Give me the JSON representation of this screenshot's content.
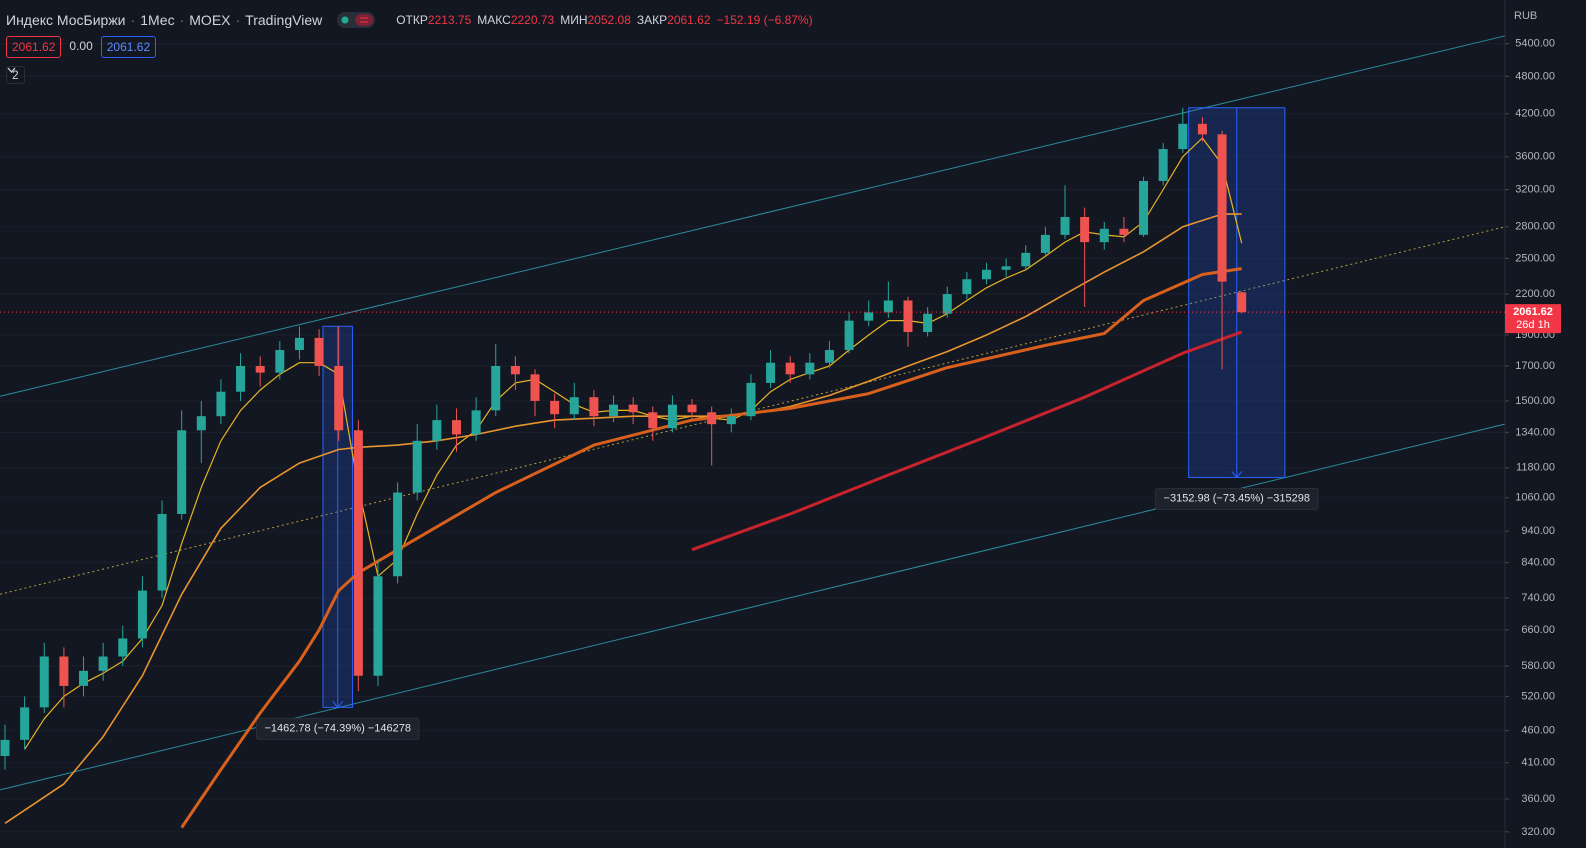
{
  "header": {
    "symbol": "Индекс МосБиржи",
    "interval": "1Мес",
    "exchange": "MOEX",
    "source": "TradingView",
    "ohlc": [
      {
        "label": "ОТКР",
        "value": 2213.75
      },
      {
        "label": "МАКС",
        "value": 2220.73
      },
      {
        "label": "МИН",
        "value": 2052.08
      },
      {
        "label": "ЗАКР",
        "value": 2061.62
      }
    ],
    "change": "−152.19 (−6.87%)",
    "inputs": [
      "2061.62",
      "0.00",
      "2061.62"
    ],
    "indicators_count": 2
  },
  "chart_data": {
    "type": "candlestick",
    "log_scale": true,
    "grid": true,
    "currency": "RUB",
    "up_color": "#26a69a",
    "down_color": "#ef5350",
    "candles": [
      [
        420,
        470,
        400,
        445
      ],
      [
        445,
        520,
        430,
        500
      ],
      [
        500,
        630,
        490,
        600
      ],
      [
        600,
        620,
        500,
        540
      ],
      [
        540,
        600,
        520,
        570
      ],
      [
        570,
        630,
        550,
        600
      ],
      [
        600,
        670,
        580,
        640
      ],
      [
        640,
        800,
        620,
        760
      ],
      [
        760,
        1050,
        740,
        1000
      ],
      [
        1000,
        1450,
        980,
        1350
      ],
      [
        1350,
        1500,
        1200,
        1420
      ],
      [
        1420,
        1620,
        1380,
        1550
      ],
      [
        1550,
        1780,
        1500,
        1700
      ],
      [
        1700,
        1760,
        1580,
        1660
      ],
      [
        1660,
        1860,
        1620,
        1800
      ],
      [
        1800,
        1960,
        1740,
        1880
      ],
      [
        1880,
        1940,
        1640,
        1700
      ],
      [
        1700,
        1960,
        1300,
        1350
      ],
      [
        1350,
        1400,
        530,
        560
      ],
      [
        560,
        850,
        540,
        800
      ],
      [
        800,
        1120,
        780,
        1080
      ],
      [
        1080,
        1380,
        1050,
        1300
      ],
      [
        1300,
        1480,
        1260,
        1400
      ],
      [
        1400,
        1460,
        1250,
        1330
      ],
      [
        1330,
        1520,
        1300,
        1450
      ],
      [
        1450,
        1840,
        1420,
        1700
      ],
      [
        1700,
        1760,
        1560,
        1650
      ],
      [
        1650,
        1680,
        1420,
        1500
      ],
      [
        1500,
        1540,
        1360,
        1430
      ],
      [
        1430,
        1600,
        1400,
        1520
      ],
      [
        1520,
        1560,
        1370,
        1420
      ],
      [
        1420,
        1530,
        1390,
        1480
      ],
      [
        1480,
        1520,
        1380,
        1440
      ],
      [
        1440,
        1470,
        1300,
        1360
      ],
      [
        1360,
        1530,
        1340,
        1480
      ],
      [
        1480,
        1510,
        1400,
        1440
      ],
      [
        1440,
        1470,
        1190,
        1380
      ],
      [
        1380,
        1460,
        1340,
        1420
      ],
      [
        1420,
        1650,
        1400,
        1600
      ],
      [
        1600,
        1800,
        1570,
        1720
      ],
      [
        1720,
        1760,
        1600,
        1650
      ],
      [
        1650,
        1780,
        1620,
        1720
      ],
      [
        1720,
        1860,
        1690,
        1800
      ],
      [
        1800,
        2060,
        1780,
        2000
      ],
      [
        2000,
        2150,
        1960,
        2060
      ],
      [
        2060,
        2300,
        2020,
        2150
      ],
      [
        2150,
        2180,
        1820,
        1920
      ],
      [
        1920,
        2100,
        1890,
        2050
      ],
      [
        2050,
        2260,
        2020,
        2200
      ],
      [
        2200,
        2380,
        2160,
        2320
      ],
      [
        2320,
        2460,
        2280,
        2400
      ],
      [
        2400,
        2500,
        2340,
        2430
      ],
      [
        2430,
        2620,
        2400,
        2550
      ],
      [
        2550,
        2800,
        2520,
        2720
      ],
      [
        2720,
        3250,
        2680,
        2900
      ],
      [
        2900,
        3000,
        2100,
        2650
      ],
      [
        2650,
        2850,
        2580,
        2780
      ],
      [
        2780,
        2900,
        2650,
        2720
      ],
      [
        2720,
        3350,
        2700,
        3300
      ],
      [
        3300,
        3780,
        3250,
        3700
      ],
      [
        3700,
        4290,
        3650,
        4050
      ],
      [
        4050,
        4150,
        3800,
        3900
      ],
      [
        3900,
        3950,
        1680,
        2300
      ],
      [
        2213.75,
        2220.73,
        2052.08,
        2061.62
      ]
    ],
    "series": [
      {
        "color": "#e6b422",
        "width": 1.2,
        "x": [
          1,
          2,
          3,
          4,
          5,
          6,
          7,
          8,
          9,
          10,
          11,
          12,
          13,
          14,
          15,
          16,
          17,
          18,
          19,
          20,
          21,
          22,
          23,
          24,
          25,
          26,
          27,
          28,
          29,
          30,
          31,
          32,
          33,
          34,
          35,
          36,
          37,
          38,
          39,
          40,
          41,
          42,
          43,
          44,
          45,
          46,
          47,
          48,
          49,
          50,
          51,
          52,
          53,
          54,
          55,
          56,
          57,
          58,
          59,
          60,
          61,
          62,
          63
        ],
        "values": [
          430,
          480,
          520,
          545,
          565,
          590,
          640,
          720,
          900,
          1100,
          1300,
          1450,
          1560,
          1650,
          1720,
          1720,
          1650,
          1100,
          800,
          850,
          1000,
          1150,
          1280,
          1350,
          1500,
          1600,
          1620,
          1550,
          1480,
          1440,
          1450,
          1450,
          1420,
          1400,
          1420,
          1410,
          1400,
          1450,
          1550,
          1620,
          1660,
          1700,
          1800,
          1900,
          2000,
          2000,
          1980,
          2050,
          2150,
          2250,
          2330,
          2400,
          2520,
          2650,
          2750,
          2720,
          2700,
          2850,
          3200,
          3600,
          3850,
          3500,
          2640
        ]
      },
      {
        "color": "#e8952c",
        "width": 1.6,
        "x": [
          0,
          3,
          5,
          7,
          9,
          11,
          13,
          15,
          17,
          18,
          20,
          22,
          24,
          26,
          28,
          30,
          32,
          34,
          36,
          38,
          40,
          42,
          44,
          46,
          48,
          50,
          52,
          54,
          56,
          58,
          60,
          62,
          63
        ],
        "values": [
          330,
          380,
          450,
          560,
          750,
          950,
          1100,
          1200,
          1260,
          1270,
          1280,
          1300,
          1330,
          1370,
          1400,
          1410,
          1420,
          1420,
          1420,
          1430,
          1470,
          1530,
          1610,
          1700,
          1790,
          1900,
          2030,
          2200,
          2380,
          2560,
          2800,
          2930,
          2930
        ]
      },
      {
        "color": "#d9601c",
        "width": 3,
        "x": [
          9,
          11,
          13,
          15,
          16,
          17,
          18,
          20,
          25,
          30,
          35,
          40,
          44,
          48,
          53,
          56,
          58,
          61,
          63
        ],
        "values": [
          325,
          400,
          490,
          590,
          660,
          760,
          810,
          880,
          1080,
          1280,
          1400,
          1460,
          1540,
          1690,
          1830,
          1910,
          2150,
          2360,
          2410
        ]
      },
      {
        "color": "#c8232c",
        "width": 3,
        "x": [
          35,
          40,
          45,
          50,
          55,
          60,
          63
        ],
        "values": [
          880,
          1000,
          1150,
          1320,
          1520,
          1780,
          1920
        ]
      }
    ],
    "channels": [
      {
        "color": "#2a8c9c",
        "dash": false,
        "x": [
          -0.25,
          76.4
        ],
        "values": [
          1525,
          5550
        ]
      },
      {
        "color": "#2a8c9c",
        "dash": false,
        "x": [
          -0.25,
          76.4
        ],
        "values": [
          372,
          1380
        ]
      },
      {
        "color": "#b5a03c",
        "dash": true,
        "x": [
          -0.25,
          76.4
        ],
        "values": [
          750,
          2800
        ]
      }
    ],
    "measures": [
      {
        "x": [
          16.2,
          17.7
        ],
        "from": 1960,
        "to": 500,
        "label": "−1462.78 (−74.39%) −146278"
      },
      {
        "x": [
          60.3,
          65.2
        ],
        "from": 4290,
        "to": 1140,
        "label": "−3152.98 (−73.45%) −315298"
      }
    ],
    "last_price": 2061.62,
    "countdown": "26d 1h",
    "ylim": [
      302,
      6313
    ],
    "yticks": [
      {
        "value": 320,
        "label": "320.00"
      },
      {
        "value": 360,
        "label": "360.00"
      },
      {
        "value": 410,
        "label": "410.00"
      },
      {
        "value": 460,
        "label": "460.00"
      },
      {
        "value": 520,
        "label": "520.00"
      },
      {
        "value": 580,
        "label": "580.00"
      },
      {
        "value": 660,
        "label": "660.00"
      },
      {
        "value": 740,
        "label": "740.00"
      },
      {
        "value": 840,
        "label": "840.00"
      },
      {
        "value": 940,
        "label": "940.00"
      },
      {
        "value": 1060,
        "label": "1060.00"
      },
      {
        "value": 1180,
        "label": "1180.00"
      },
      {
        "value": 1340,
        "label": "1340.00"
      },
      {
        "value": 1500,
        "label": "1500.00"
      },
      {
        "value": 1700,
        "label": "1700.00"
      },
      {
        "value": 1900,
        "label": "1900.00"
      },
      {
        "value": 2200,
        "label": "2200.00"
      },
      {
        "value": 2500,
        "label": "2500.00"
      },
      {
        "value": 2800,
        "label": "2800.00"
      },
      {
        "value": 3200,
        "label": "3200.00"
      },
      {
        "value": 3600,
        "label": "3600.00"
      },
      {
        "value": 4200,
        "label": "4200.00"
      },
      {
        "value": 4800,
        "label": "4800.00"
      },
      {
        "value": 5400,
        "label": "5400.00"
      }
    ]
  }
}
